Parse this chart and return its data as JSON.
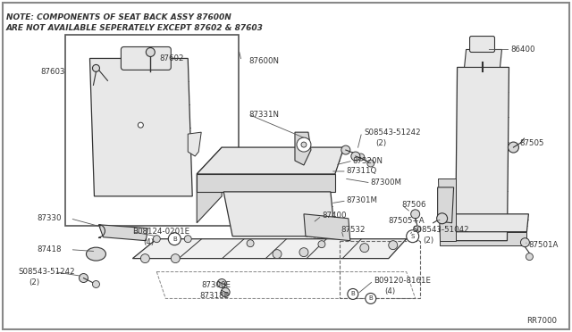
{
  "bg": "#ffffff",
  "lc": "#333333",
  "tc": "#333333",
  "note1": "NOTE: COMPONENTS OF SEAT BACK ASSY 87600N",
  "note2": "ARE NOT AVAILABLE SEPERATELY EXCEPT 87602 & 87603",
  "ref": "RR7000",
  "figsize": [
    6.4,
    3.72
  ],
  "dpi": 100
}
